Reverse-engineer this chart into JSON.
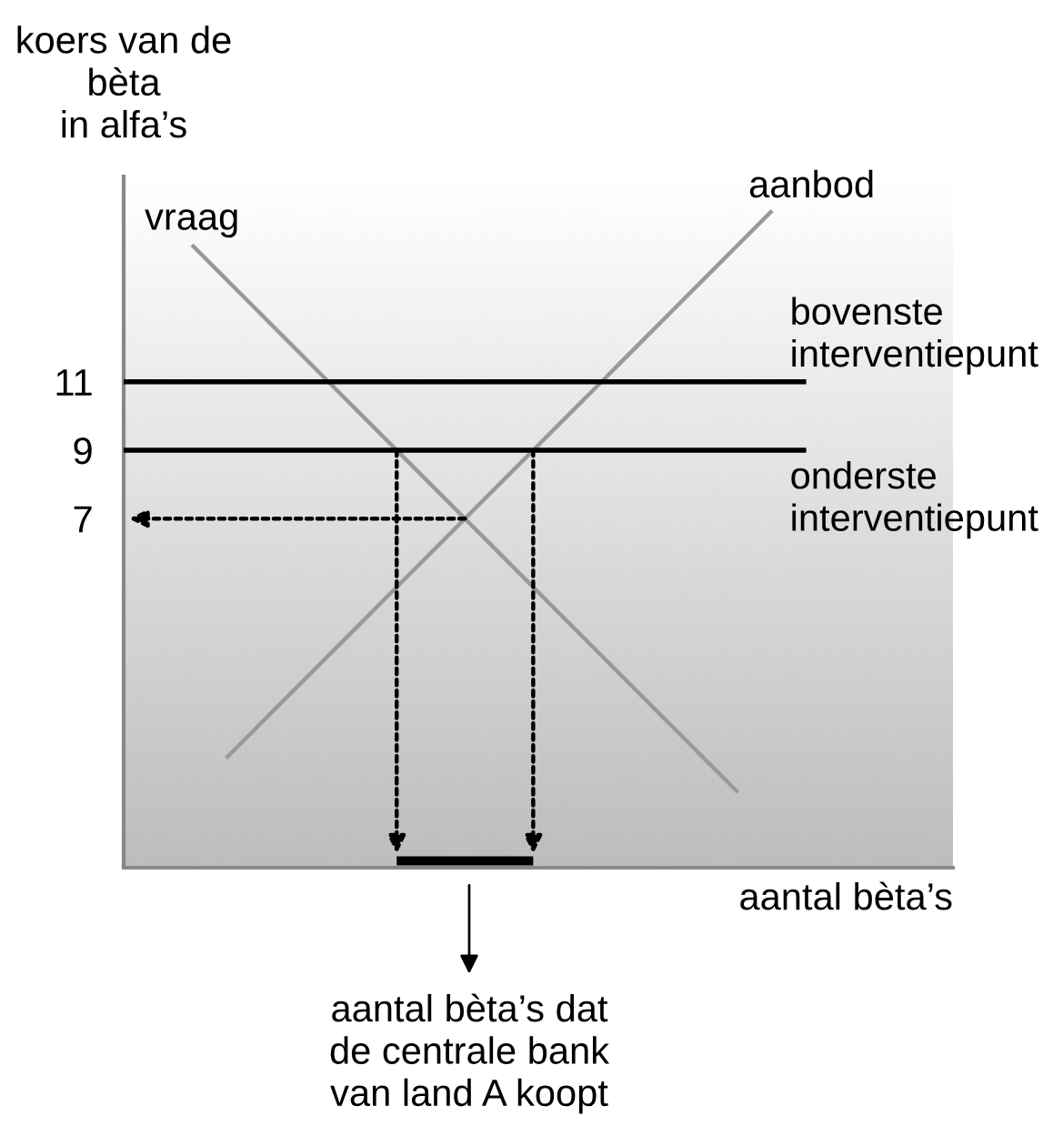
{
  "chart_data": {
    "type": "line",
    "ylabel": "koers van de\nbèta\nin alfa’s",
    "xlabel": "aantal bèta’s",
    "categories": [
      null,
      null,
      null,
      null,
      null,
      null,
      null,
      null,
      null,
      null,
      null,
      null,
      null,
      null,
      null,
      null,
      null,
      null,
      null,
      null,
      null,
      null,
      null,
      null,
      null
    ],
    "ylim": [
      -3.2,
      17
    ],
    "yticks": [
      7,
      9,
      11
    ],
    "tick_labels": "y",
    "series": [
      {
        "name": "vraag",
        "color": "#999999",
        "values": [
          null,
          null,
          15,
          14,
          13,
          12,
          11,
          10,
          9,
          8,
          7,
          6,
          5,
          4,
          3,
          2,
          1,
          0,
          -1,
          null,
          null,
          null,
          null,
          null,
          null
        ]
      },
      {
        "name": "aanbod",
        "color": "#999999",
        "values": [
          null,
          null,
          null,
          0,
          1,
          2,
          3,
          4,
          5,
          6,
          7,
          8,
          9,
          10,
          11,
          12,
          13,
          14,
          15,
          16,
          null,
          null,
          null,
          null,
          null
        ]
      },
      {
        "name": "bovenste\ninterventiepunt",
        "color": "#000000",
        "values": [
          11,
          11,
          11,
          11,
          11,
          11,
          11,
          11,
          11,
          11,
          11,
          11,
          11,
          11,
          11,
          11,
          11,
          11,
          11,
          11,
          11,
          null,
          null,
          null,
          null
        ]
      },
      {
        "name": "onderste\ninterventiepunt",
        "color": "#000000",
        "values": [
          9,
          9,
          9,
          9,
          9,
          9,
          9,
          9,
          9,
          9,
          9,
          9,
          9,
          9,
          9,
          9,
          9,
          9,
          9,
          9,
          9,
          null,
          null,
          null,
          null
        ]
      },
      {
        "color": "#000000",
        "values": [
          null,
          null,
          null,
          null,
          null,
          null,
          null,
          null,
          -3.0,
          -3.0,
          -3.0,
          -3.0,
          -3.0,
          null,
          null,
          null,
          null,
          null,
          null,
          null,
          null,
          null,
          null,
          null,
          null
        ]
      }
    ],
    "annotations": [
      "aantal bèta’s dat\nde centrale bank\nvan land A koopt"
    ]
  }
}
